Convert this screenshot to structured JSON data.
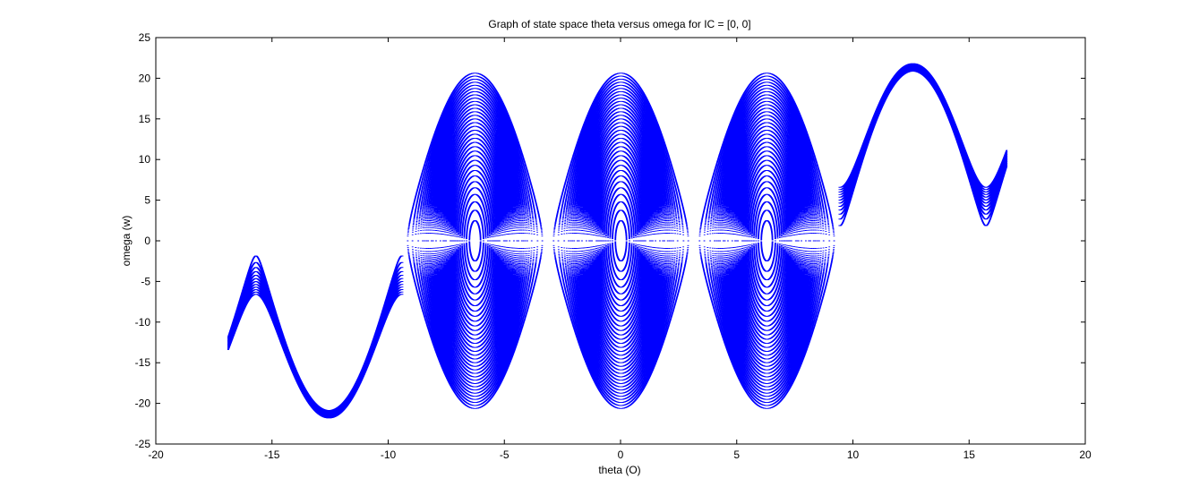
{
  "chart_data": {
    "type": "scatter",
    "title": "Graph of state space theta versus omega for IC = [0, 0]",
    "xlabel": "theta (O)",
    "ylabel": "omega (w)",
    "xlim": [
      -20,
      20
    ],
    "ylim": [
      -25,
      25
    ],
    "xticks": [
      -20,
      -15,
      -10,
      -5,
      0,
      5,
      10,
      15,
      20
    ],
    "yticks": [
      -25,
      -20,
      -15,
      -10,
      -5,
      0,
      5,
      10,
      15,
      20,
      25
    ],
    "grid": false,
    "legend": "none",
    "marker_color": "#0000ff",
    "series": [
      {
        "values": "phase-space trajectories: closed orbits around centers",
        "centers": [
          [
            -6.28,
            0
          ],
          [
            0,
            0
          ],
          [
            6.28,
            0
          ]
        ],
        "max_amplitude": 21.8,
        "open_band_left": {
          "x_start": -16.9,
          "x_end": -9.4,
          "omega_min": -21.8
        },
        "open_band_right": {
          "x_start": 9.4,
          "x_end": 16.6,
          "omega_max": 21.9
        }
      }
    ]
  }
}
